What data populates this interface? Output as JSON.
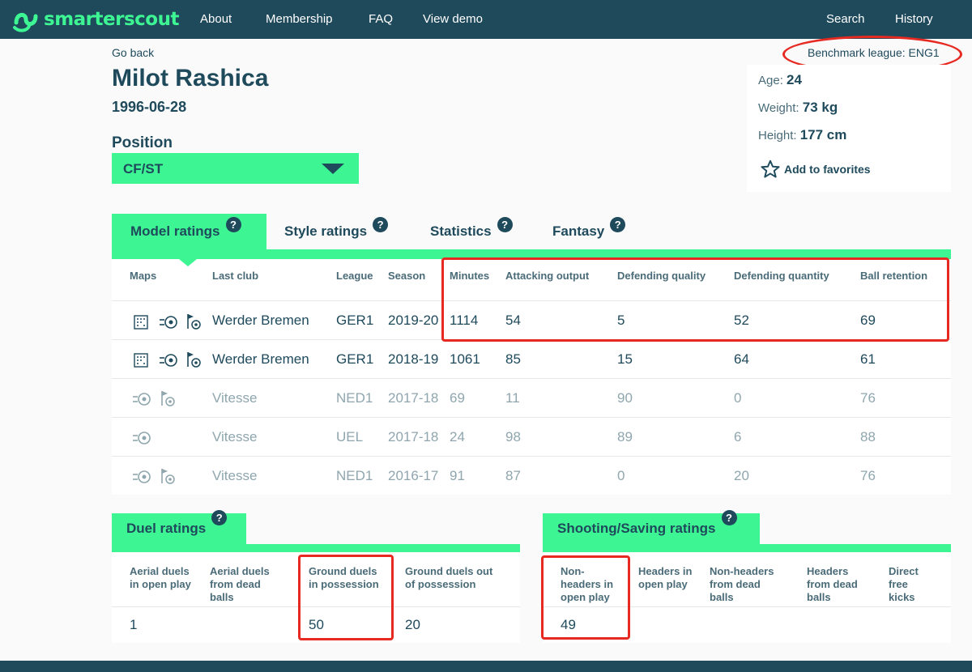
{
  "nav": {
    "logo_text": "smarterscout",
    "links": [
      "About",
      "Membership",
      "FAQ",
      "View demo"
    ],
    "right_links": [
      "Search",
      "History"
    ]
  },
  "player": {
    "go_back": "Go back",
    "name": "Milot Rashica",
    "birth_date": "1996-06-28",
    "position_label": "Position",
    "position_value": "CF/ST",
    "benchmark": "Benchmark league: ENG1",
    "age_label": "Age:",
    "age": "24",
    "weight_label": "Weight:",
    "weight": "73 kg",
    "height_label": "Height:",
    "height": "177 cm",
    "favorites": "Add to favorites"
  },
  "tabs": [
    "Model ratings",
    "Style ratings",
    "Statistics",
    "Fantasy"
  ],
  "qmark": "?",
  "model_table": {
    "headers": [
      "Maps",
      "Last club",
      "League",
      "Season",
      "Minutes",
      "Attacking output",
      "Defending quality",
      "Defending quantity",
      "Ball retention"
    ],
    "rows": [
      {
        "club": "Werder Bremen",
        "league": "GER1",
        "season": "2019-20",
        "minutes": "1114",
        "att": "54",
        "defq": "5",
        "defn": "52",
        "ball": "69"
      },
      {
        "club": "Werder Bremen",
        "league": "GER1",
        "season": "2018-19",
        "minutes": "1061",
        "att": "85",
        "defq": "15",
        "defn": "64",
        "ball": "61"
      },
      {
        "club": "Vitesse",
        "league": "NED1",
        "season": "2017-18",
        "minutes": "69",
        "att": "11",
        "defq": "90",
        "defn": "0",
        "ball": "76"
      },
      {
        "club": "Vitesse",
        "league": "UEL",
        "season": "2017-18",
        "minutes": "24",
        "att": "98",
        "defq": "89",
        "defn": "6",
        "ball": "88"
      },
      {
        "club": "Vitesse",
        "league": "NED1",
        "season": "2016-17",
        "minutes": "91",
        "att": "87",
        "defq": "0",
        "defn": "20",
        "ball": "76"
      }
    ]
  },
  "duel": {
    "title": "Duel ratings",
    "h1a": "Aerial duels",
    "h1b": "in open play",
    "h2a": "Aerial duels",
    "h2b": "from dead",
    "h2c": "balls",
    "h3a": "Ground duels",
    "h3b": "in possession",
    "h4a": "Ground duels out",
    "h4b": "of possession",
    "v1": "1",
    "v2": "",
    "v3": "50",
    "v4": "20"
  },
  "shooting": {
    "title": "Shooting/Saving ratings",
    "h1a": "Non-",
    "h1b": "headers in",
    "h1c": "open play",
    "h2a": "Headers in",
    "h2b": "open play",
    "h3a": "Non-headers",
    "h3b": "from dead",
    "h3c": "balls",
    "h4a": "Headers",
    "h4b": "from dead",
    "h4c": "balls",
    "h5a": "Direct",
    "h5b": "free",
    "h5c": "kicks",
    "v1": "49"
  }
}
